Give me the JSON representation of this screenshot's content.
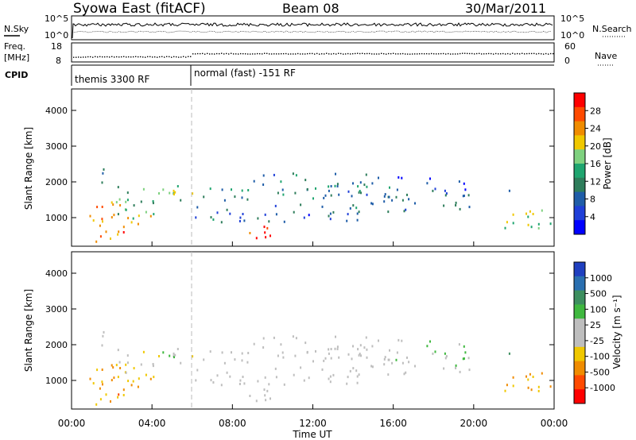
{
  "header": {
    "station": "Syowa East (fitACF)",
    "beam": "Beam 08",
    "date": "30/Mar/2011"
  },
  "panels": {
    "nsky": {
      "left_label": "N.Sky",
      "left_ticks": [
        "10^5",
        "10^0"
      ],
      "right_ticks": [
        "10^5",
        "10^0"
      ],
      "right_label": "N.Search"
    },
    "freq": {
      "left_label_top": "Freq.",
      "left_label_bottom": "[MHz]",
      "left_ticks": [
        "18",
        "8"
      ],
      "right_ticks": [
        "60",
        "0"
      ],
      "right_label": "Nave"
    },
    "cpid": {
      "label": "CPID",
      "modes": [
        "themis 3300 RF",
        "normal (fast) -151 RF"
      ]
    }
  },
  "power_panel": {
    "ylabel": "Slant Range [km]",
    "yticks": [
      "4000",
      "3000",
      "2000",
      "1000"
    ],
    "colorbar_label": "Power [dB]",
    "colorbar_ticks": [
      "28",
      "24",
      "20",
      "16",
      "12",
      "8",
      "4"
    ],
    "colorbar_colors": [
      "#ff0000",
      "#ff4a00",
      "#f08c00",
      "#f0c800",
      "#7fd17f",
      "#1fa56f",
      "#2e7d5b",
      "#1f5da8",
      "#1f3fd8",
      "#0000ff"
    ]
  },
  "velocity_panel": {
    "ylabel": "Slant Range [km]",
    "yticks": [
      "4000",
      "3000",
      "2000",
      "1000"
    ],
    "colorbar_label": "Velocity [m s⁻¹]",
    "colorbar_ticks": [
      "1000",
      "500",
      "100",
      "25",
      "-25",
      "-100",
      "-500",
      "-1000"
    ],
    "colorbar_colors": [
      "#1f3fbf",
      "#2a6fb0",
      "#3d8f5f",
      "#3fb83f",
      "#bebebe",
      "#bebebe",
      "#f0c800",
      "#f08c00",
      "#ff4a00",
      "#ff0000"
    ]
  },
  "time_axis": {
    "ticks": [
      "00:00",
      "04:00",
      "08:00",
      "12:00",
      "16:00",
      "20:00",
      "00:00"
    ],
    "label": "Time UT"
  },
  "chart_data": {
    "type": "heatmap",
    "title": "Syowa East (fitACF)",
    "subtitle": "Beam 08",
    "date": "30/Mar/2011",
    "xlabel": "Time UT",
    "ylabel": "Slant Range [km]",
    "xlim_hours": [
      0,
      24
    ],
    "ylim_km": [
      200,
      4600
    ],
    "mode_change_hour": 6,
    "modes": [
      {
        "label": "themis 3300 RF",
        "start_hour": 0,
        "end_hour": 6
      },
      {
        "label": "normal (fast) -151 RF",
        "start_hour": 6,
        "end_hour": 24
      }
    ],
    "power_scale_dB": [
      0,
      32
    ],
    "velocity_scale_ms": [
      -1000,
      1000
    ],
    "echo_regions": [
      {
        "t0": 0.5,
        "t1": 2.0,
        "r0": 1800,
        "r1": 2500,
        "power": 10,
        "velocity": -100,
        "density": 0.18
      },
      {
        "t0": 0.5,
        "t1": 4.0,
        "r0": 700,
        "r1": 1500,
        "power": 22,
        "velocity": -400,
        "density": 0.45
      },
      {
        "t0": 1.0,
        "t1": 3.2,
        "r0": 250,
        "r1": 700,
        "power": 26,
        "velocity": -500,
        "density": 0.4
      },
      {
        "t0": 2.0,
        "t1": 5.0,
        "r0": 1000,
        "r1": 2000,
        "power": 14,
        "velocity": -200,
        "density": 0.3
      },
      {
        "t0": 4.0,
        "t1": 5.8,
        "r0": 1500,
        "r1": 2100,
        "power": 16,
        "velocity": 200,
        "density": 0.4
      },
      {
        "t0": 5.0,
        "t1": 6.0,
        "r0": 1700,
        "r1": 1900,
        "power": 22,
        "velocity": -300,
        "density": 0.55
      },
      {
        "t0": 6.0,
        "t1": 14.5,
        "r0": 1500,
        "r1": 1850,
        "power": 11,
        "velocity": 0,
        "density": 0.55
      },
      {
        "t0": 6.0,
        "t1": 14.5,
        "r0": 900,
        "r1": 1400,
        "power": 8,
        "velocity": 0,
        "density": 0.45
      },
      {
        "t0": 8.5,
        "t1": 10.0,
        "r0": 450,
        "r1": 800,
        "power": 28,
        "velocity": 0,
        "density": 0.75
      },
      {
        "t0": 9.0,
        "t1": 16.0,
        "r0": 1900,
        "r1": 2300,
        "power": 10,
        "velocity": 0,
        "density": 0.45
      },
      {
        "t0": 13.5,
        "t1": 15.8,
        "r0": 1100,
        "r1": 1900,
        "power": 9,
        "velocity": 0,
        "density": 0.45
      },
      {
        "t0": 15.5,
        "t1": 20.0,
        "r0": 1200,
        "r1": 1800,
        "power": 8,
        "velocity": 100,
        "density": 0.45
      },
      {
        "t0": 16.0,
        "t1": 22.5,
        "r0": 1700,
        "r1": 2200,
        "power": 7,
        "velocity": 250,
        "density": 0.2
      },
      {
        "t0": 21.5,
        "t1": 24.0,
        "r0": 700,
        "r1": 1300,
        "power": 18,
        "velocity": -400,
        "density": 0.55
      }
    ]
  }
}
